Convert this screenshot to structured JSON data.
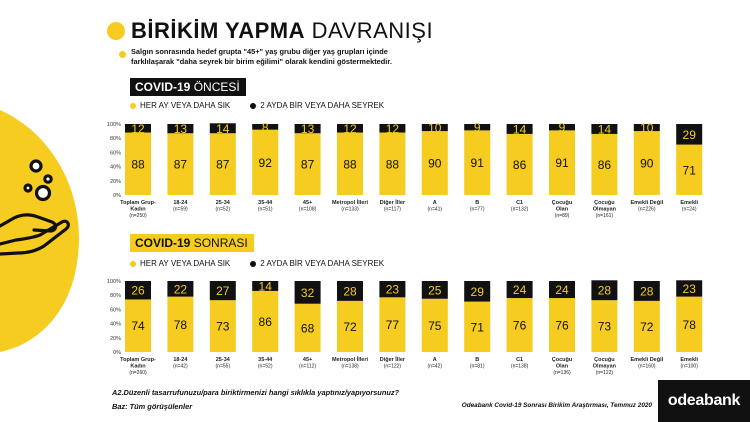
{
  "header": {
    "title_bold": "BİRİKİM YAPMA",
    "title_light": "DAVRANIŞI",
    "subtitle_line1": "Salgın sonrasında hedef grupta \"45+\"  yaş grubu diğer yaş grupları içinde",
    "subtitle_line2": "farklılaşarak \"daha seyrek bir birim eğilimi\" olarak kendini göstermektedir."
  },
  "colors": {
    "yellow": "#f5cc1f",
    "black": "#111111"
  },
  "icons": [
    "hand-coins-icon"
  ],
  "sections": [
    {
      "title_bold": "COVID-19",
      "title_light": "ÖNCESİ",
      "legend": [
        "HER AY VEYA DAHA SIK",
        "2 AYDA BİR VEYA DAHA SEYREK"
      ]
    },
    {
      "title_bold": "COVID-19",
      "title_light": "SONRASI",
      "legend": [
        "HER AY VEYA DAHA SIK",
        "2 AYDA BİR VEYA DAHA SEYREK"
      ]
    }
  ],
  "chart_data": [
    {
      "type": "bar",
      "stacked": true,
      "title": "COVID-19 ÖNCESİ",
      "categories": [
        "Toplam Grup-Kadın",
        "18-24",
        "25-34",
        "35-44",
        "45+",
        "Metropol İlleri",
        "Diğer İller",
        "A",
        "B",
        "C1",
        "Çocuğu Olan",
        "Çocuğu Olmayan",
        "Emekli Değil",
        "Emekli"
      ],
      "category_lines": [
        [
          "Toplam Grup-",
          "Kadın",
          "(n=250)"
        ],
        [
          "18-24",
          "(n=59)"
        ],
        [
          "25-34",
          "(n=52)"
        ],
        [
          "35-44",
          "(n=51)"
        ],
        [
          "45+",
          "(n=108)"
        ],
        [
          "Metropol İlleri",
          "(n=133)"
        ],
        [
          "Diğer İller",
          "(n=117)"
        ],
        [
          "A",
          "(n=41)"
        ],
        [
          "B",
          "(n=77)"
        ],
        [
          "C1",
          "(n=132)"
        ],
        [
          "Çocuğu",
          "Olan",
          "(n=89)"
        ],
        [
          "Çocuğu",
          "Olmayan",
          "(n=161)"
        ],
        [
          "Emekli Değil",
          "(n=226)"
        ],
        [
          "Emekli",
          "(n=24)"
        ]
      ],
      "series": [
        {
          "name": "HER AY VEYA DAHA SIK",
          "color": "#f5cc1f",
          "values": [
            88,
            87,
            87,
            92,
            87,
            88,
            88,
            90,
            91,
            86,
            91,
            86,
            90,
            71
          ]
        },
        {
          "name": "2 AYDA BİR VEYA DAHA SEYREK",
          "color": "#111111",
          "values": [
            12,
            13,
            14,
            8,
            13,
            12,
            12,
            10,
            9,
            14,
            9,
            14,
            10,
            29
          ]
        }
      ],
      "yticks": [
        "100%",
        "80%",
        "60%",
        "40%",
        "20%",
        "0%"
      ],
      "ylim": [
        0,
        100
      ]
    },
    {
      "type": "bar",
      "stacked": true,
      "title": "COVID-19 SONRASI",
      "categories": [
        "Toplam Grup-Kadın",
        "18-24",
        "25-34",
        "35-44",
        "45+",
        "Metropol İlleri",
        "Diğer İller",
        "A",
        "B",
        "C1",
        "Çocuğu Olan",
        "Çocuğu Olmayan",
        "Emekli Değil",
        "Emekli"
      ],
      "category_lines": [
        [
          "Toplam Grup-",
          "Kadın",
          "(n=260)"
        ],
        [
          "18-24",
          "(n=42)"
        ],
        [
          "25-34",
          "(n=55)"
        ],
        [
          "35-44",
          "(n=52)"
        ],
        [
          "45+",
          "(n=112)"
        ],
        [
          "Metropol İlleri",
          "(n=138)"
        ],
        [
          "Diğer İller",
          "(n=122)"
        ],
        [
          "A",
          "(n=42)"
        ],
        [
          "B",
          "(n=81)"
        ],
        [
          "C1",
          "(n=138)"
        ],
        [
          "Çocuğu",
          "Olan",
          "(n=136)"
        ],
        [
          "Çocuğu",
          "Olmayan",
          "(n=122)"
        ],
        [
          "Emekli Değil",
          "(n=160)"
        ],
        [
          "Emekli",
          "(n=100)"
        ]
      ],
      "series": [
        {
          "name": "HER AY VEYA DAHA SIK",
          "color": "#f5cc1f",
          "values": [
            74,
            78,
            73,
            86,
            68,
            72,
            77,
            75,
            71,
            76,
            76,
            73,
            72,
            78
          ]
        },
        {
          "name": "2 AYDA BİR VEYA DAHA SEYREK",
          "color": "#111111",
          "values": [
            26,
            22,
            27,
            14,
            32,
            28,
            23,
            25,
            29,
            24,
            24,
            28,
            28,
            23
          ]
        }
      ],
      "yticks": [
        "100%",
        "80%",
        "60%",
        "40%",
        "20%",
        "0%"
      ],
      "ylim": [
        0,
        100
      ]
    }
  ],
  "footer": {
    "question": "A2.Düzenli tasarrufunuzu/para biriktirmenizi hangi sıklıkla yaptınız/yapıyorsunuz?",
    "base": "Baz: Tüm görüşülenler",
    "source": "Odeabank Covid-19 Sonrası Birikim Araştırması, Temmuz 2020",
    "logo": "odeabank"
  }
}
